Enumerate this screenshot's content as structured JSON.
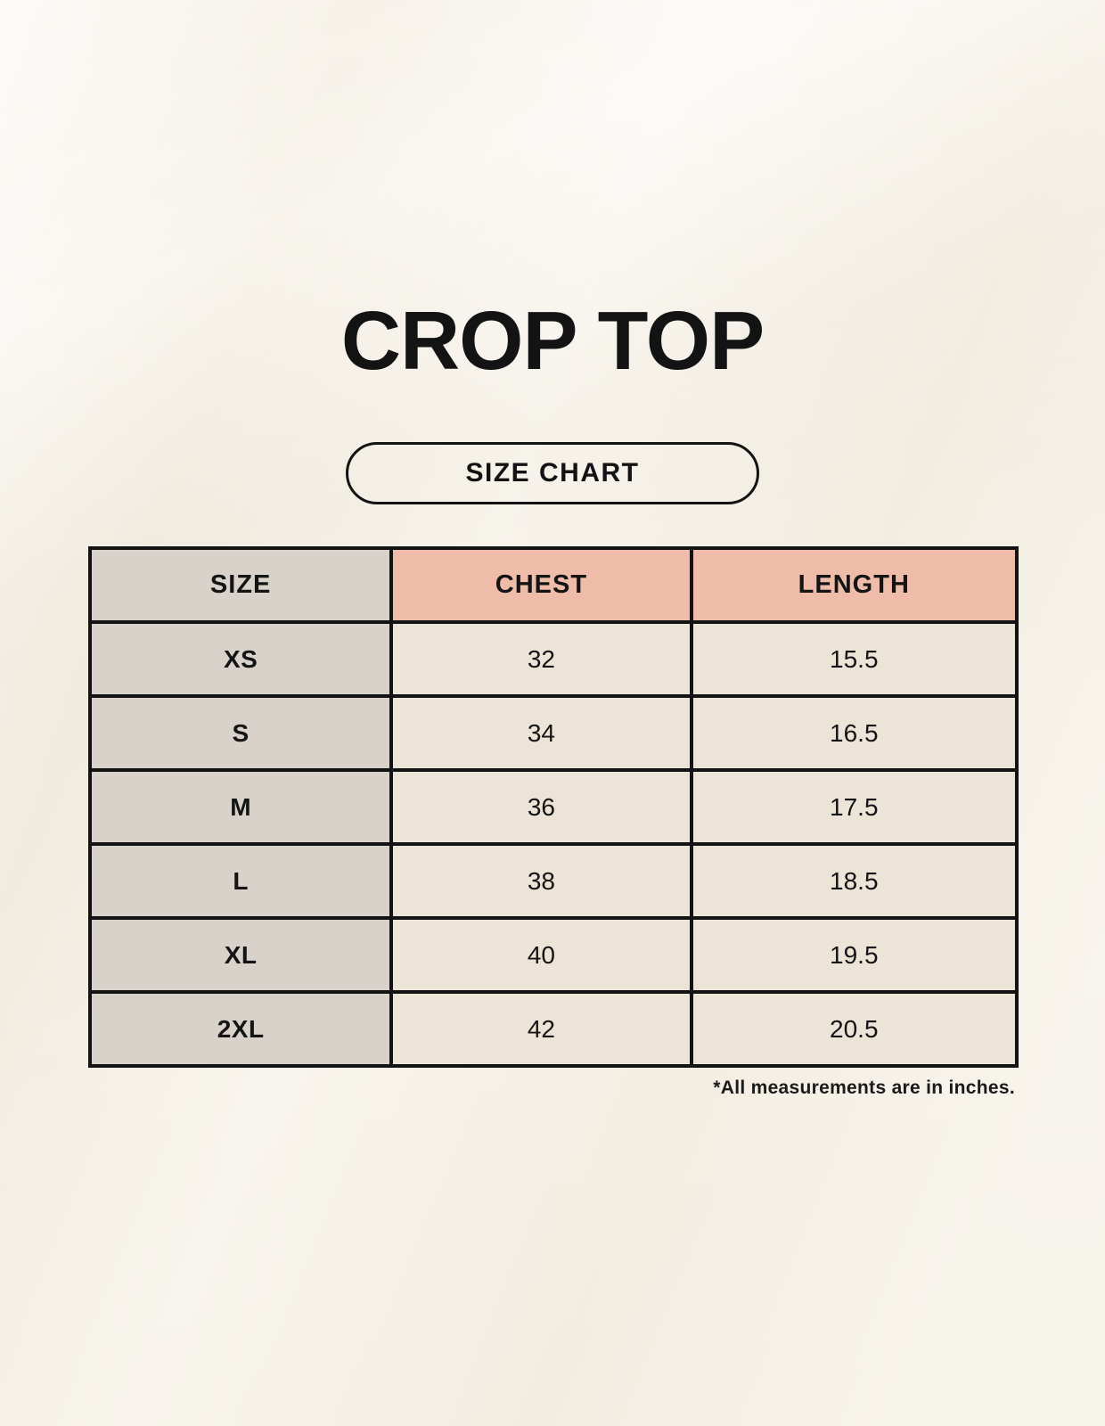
{
  "colors": {
    "background": "#f6f1e7",
    "header_salmon": "#f0bcaa",
    "size_column_gray": "#d9d2cb",
    "value_cell_cream": "#ebe4d7",
    "border": "#131313"
  },
  "title": "CROP TOP",
  "size_chart_button": {
    "label": "SIZE CHART"
  },
  "size_table": {
    "columns": [
      "SIZE",
      "CHEST",
      "LENGTH"
    ],
    "rows": [
      {
        "size": "XS",
        "chest": "32",
        "length": "15.5"
      },
      {
        "size": "S",
        "chest": "34",
        "length": "16.5"
      },
      {
        "size": "M",
        "chest": "36",
        "length": "17.5"
      },
      {
        "size": "L",
        "chest": "38",
        "length": "18.5"
      },
      {
        "size": "XL",
        "chest": "40",
        "length": "19.5"
      },
      {
        "size": "2XL",
        "chest": "42",
        "length": "20.5"
      }
    ],
    "units_note": "*All measurements are in inches."
  }
}
